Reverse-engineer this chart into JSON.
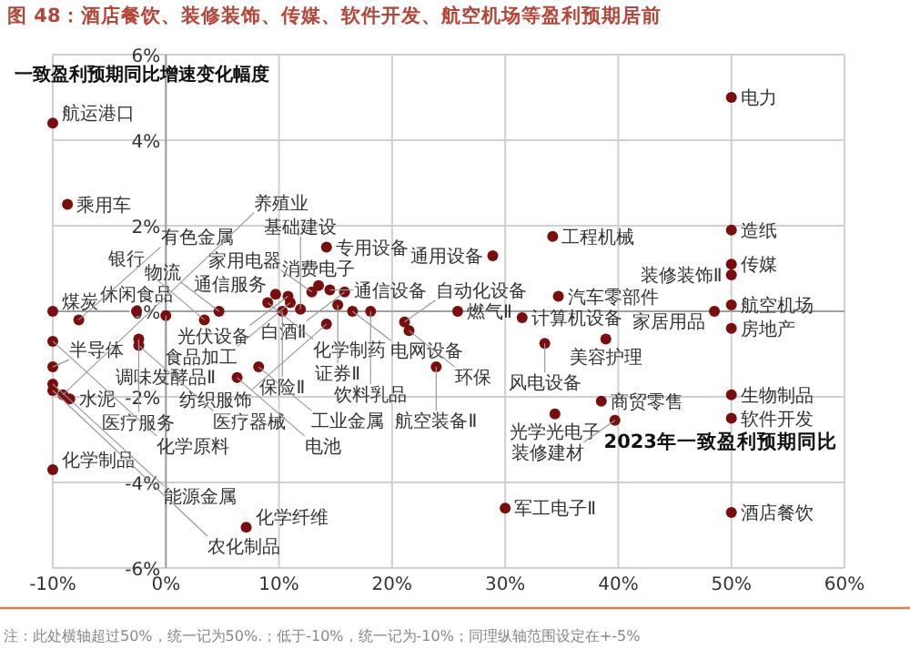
{
  "chart_data": {
    "type": "scatter",
    "title": "图 48：酒店餐饮、装修装饰、传媒、软件开发、航空机场等盈利预期居前",
    "xlabel": "2023年一致盈利预期同比",
    "ylabel": "一致盈利预期同比增速变化幅度",
    "annotations": [
      "注：此处横轴超过50%，统一记为50%.；低于-10%，统一记为-10%；同理纵轴范围设定在+-5%"
    ],
    "color": "#7b0d0d",
    "marker": "circle",
    "grid": true,
    "xlim": [
      -10,
      60
    ],
    "ylim": [
      -6,
      6
    ],
    "xticks": [
      {
        "value": -10,
        "label": "-10%"
      },
      {
        "value": 0,
        "label": "0%"
      },
      {
        "value": 10,
        "label": "10%"
      },
      {
        "value": 20,
        "label": "20%"
      },
      {
        "value": 30,
        "label": "30%"
      },
      {
        "value": 40,
        "label": "40%"
      },
      {
        "value": 50,
        "label": "50%"
      },
      {
        "value": 60,
        "label": "60%"
      }
    ],
    "yticks": [
      {
        "value": -6,
        "label": "-6%"
      },
      {
        "value": -4,
        "label": "-4%"
      },
      {
        "value": -2,
        "label": "-2%"
      },
      {
        "value": 0,
        "label": "0%"
      },
      {
        "value": 2,
        "label": "2%"
      },
      {
        "value": 4,
        "label": "4%"
      },
      {
        "value": 6,
        "label": "6%"
      }
    ],
    "series": [
      {
        "name": "电力",
        "x": [
          50
        ],
        "values": [
          5.0
        ]
      },
      {
        "name": "航运港口",
        "x": [
          -10
        ],
        "values": [
          4.4
        ]
      },
      {
        "name": "乘用车",
        "x": [
          -8.7
        ],
        "values": [
          2.5
        ]
      },
      {
        "name": "造纸",
        "x": [
          50
        ],
        "values": [
          1.9
        ]
      },
      {
        "name": "工程机械",
        "x": [
          34.2
        ],
        "values": [
          1.75
        ]
      },
      {
        "name": "专用设备",
        "x": [
          14.2
        ],
        "values": [
          1.5
        ]
      },
      {
        "name": "通用设备",
        "x": [
          28.9
        ],
        "values": [
          1.3
        ]
      },
      {
        "name": "传媒",
        "x": [
          50
        ],
        "values": [
          1.1
        ]
      },
      {
        "name": "装修装饰Ⅱ",
        "x": [
          50
        ],
        "values": [
          0.85
        ]
      },
      {
        "name": "消费电子",
        "x": [
          13.5
        ],
        "values": [
          0.6
        ]
      },
      {
        "name": "通信设备",
        "x": [
          14.5
        ],
        "values": [
          0.5
        ]
      },
      {
        "name": "家用电器",
        "x": [
          12.9
        ],
        "values": [
          0.45
        ]
      },
      {
        "name": "白酒Ⅱ",
        "x": [
          15.8
        ],
        "values": [
          0.45
        ]
      },
      {
        "name": "通信服务",
        "x": [
          9.7
        ],
        "values": [
          0.4
        ]
      },
      {
        "name": "光伏设备",
        "x": [
          10.8
        ],
        "values": [
          0.35
        ]
      },
      {
        "name": "汽车零部件",
        "x": [
          34.7
        ],
        "values": [
          0.35
        ]
      },
      {
        "name": "化学制药",
        "x": [
          9.0
        ],
        "values": [
          0.2
        ]
      },
      {
        "name": "食品加工",
        "x": [
          11.0
        ],
        "values": [
          0.2
        ]
      },
      {
        "name": "航空机场",
        "x": [
          50
        ],
        "values": [
          0.15
        ]
      },
      {
        "name": "证券Ⅱ",
        "x": [
          15.2
        ],
        "values": [
          0.15
        ]
      },
      {
        "name": "基础建设",
        "x": [
          11.9
        ],
        "values": [
          0.05
        ]
      },
      {
        "name": "煤炭",
        "x": [
          -10
        ],
        "values": [
          0.0
        ]
      },
      {
        "name": "休闲食品",
        "x": [
          -2.6
        ],
        "values": [
          0.0
        ]
      },
      {
        "name": "物流",
        "x": [
          4.7
        ],
        "values": [
          0.0
        ]
      },
      {
        "name": "保险Ⅱ",
        "x": [
          10.3
        ],
        "values": [
          0.0
        ]
      },
      {
        "name": "电网设备",
        "x": [
          16.5
        ],
        "values": [
          0.0
        ]
      },
      {
        "name": "饮料乳品",
        "x": [
          18.1
        ],
        "values": [
          0.0
        ]
      },
      {
        "name": "燃气Ⅱ",
        "x": [
          25.8
        ],
        "values": [
          0.0
        ]
      },
      {
        "name": "家居用品",
        "x": [
          48.5
        ],
        "values": [
          0.0
        ]
      },
      {
        "name": "调味发酵品Ⅱ",
        "x": [
          0
        ],
        "values": [
          -0.1
        ]
      },
      {
        "name": "计算机设备",
        "x": [
          31.5
        ],
        "values": [
          -0.15
        ]
      },
      {
        "name": "有色金属",
        "x": [
          -7.7
        ],
        "values": [
          -0.2
        ]
      },
      {
        "name": "银行",
        "x": [
          3.4
        ],
        "values": [
          -0.2
        ]
      },
      {
        "name": "自动化设备",
        "x": [
          21.1
        ],
        "values": [
          -0.25
        ]
      },
      {
        "name": "纺织服饰",
        "x": [
          14.2
        ],
        "values": [
          -0.3
        ]
      },
      {
        "name": "房地产",
        "x": [
          50
        ],
        "values": [
          -0.4
        ]
      },
      {
        "name": "环保",
        "x": [
          21.5
        ],
        "values": [
          -0.45
        ]
      },
      {
        "name": "医疗服务",
        "x": [
          -2.4
        ],
        "values": [
          -0.65
        ]
      },
      {
        "name": "美容护理",
        "x": [
          38.9
        ],
        "values": [
          -0.65
        ]
      },
      {
        "name": "化学原料",
        "x": [
          -10
        ],
        "values": [
          -0.7
        ]
      },
      {
        "name": "风电设备",
        "x": [
          33.5
        ],
        "values": [
          -0.75
        ]
      },
      {
        "name": "医疗器械",
        "x": [
          -2.4
        ],
        "values": [
          -0.8
        ]
      },
      {
        "name": "半导体",
        "x": [
          -10
        ],
        "values": [
          -1.3
        ]
      },
      {
        "name": "工业金属",
        "x": [
          8.2
        ],
        "values": [
          -1.3
        ]
      },
      {
        "name": "航空装备Ⅱ",
        "x": [
          23.9
        ],
        "values": [
          -1.3
        ]
      },
      {
        "name": "电池",
        "x": [
          6.3
        ],
        "values": [
          -1.55
        ]
      },
      {
        "name": "能源金属",
        "x": [
          -10
        ],
        "values": [
          -1.7
        ]
      },
      {
        "name": "农化制品",
        "x": [
          -10
        ],
        "values": [
          -1.85
        ]
      },
      {
        "name": "养殖业",
        "x": [
          -9.1
        ],
        "values": [
          -1.95
        ]
      },
      {
        "name": "生物制品",
        "x": [
          50
        ],
        "values": [
          -1.95
        ]
      },
      {
        "name": "水泥",
        "x": [
          -8.5
        ],
        "values": [
          -2.05
        ]
      },
      {
        "name": "商贸零售",
        "x": [
          38.5
        ],
        "values": [
          -2.1
        ]
      },
      {
        "name": "光学光电子",
        "x": [
          34.4
        ],
        "values": [
          -2.4
        ]
      },
      {
        "name": "软件开发",
        "x": [
          50
        ],
        "values": [
          -2.5
        ]
      },
      {
        "name": "装修建材",
        "x": [
          39.7
        ],
        "values": [
          -2.55
        ]
      },
      {
        "name": "化学制品",
        "x": [
          -10
        ],
        "values": [
          -3.7
        ]
      },
      {
        "name": "军工电子Ⅱ",
        "x": [
          30
        ],
        "values": [
          -4.6
        ]
      },
      {
        "name": "酒店餐饮",
        "x": [
          50
        ],
        "values": [
          -4.7
        ]
      },
      {
        "name": "化学纤维",
        "x": [
          7.1
        ],
        "values": [
          -5.05
        ]
      }
    ]
  }
}
